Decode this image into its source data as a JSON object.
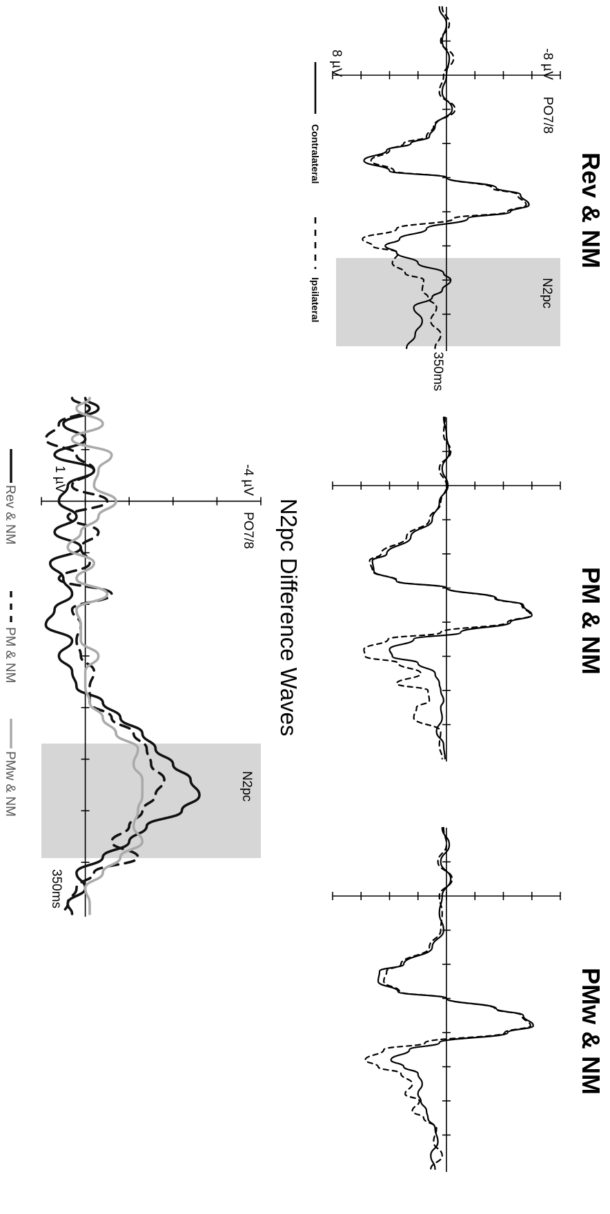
{
  "chart_data": [
    {
      "type": "line",
      "title": "Rev & NM",
      "electrode": "PO7/8",
      "y_top_label": "-8 µV",
      "y_bottom_label": "8 µV",
      "x_end_label": "350ms",
      "window_label": "N2pc",
      "ylim": [
        8,
        -8
      ],
      "xlim": [
        -100,
        400
      ],
      "shaded_window": [
        200,
        300
      ],
      "legend": {
        "contralateral": "Contralateral",
        "ipsilateral": "Ipsilateral"
      },
      "series": [
        {
          "name": "Contralateral",
          "style": "solid",
          "x": [
            -100,
            -75,
            -50,
            -25,
            0,
            25,
            50,
            75,
            90,
            100,
            110,
            125,
            140,
            150,
            165,
            175,
            190,
            200,
            210,
            225,
            240,
            250,
            260,
            275,
            290,
            300,
            315,
            325,
            340,
            360,
            380,
            400
          ],
          "y": [
            0.5,
            0,
            0.3,
            -0.2,
            0,
            0.3,
            -0.4,
            0.8,
            1.2,
            2.5,
            4.2,
            5.8,
            4.0,
            0,
            -3.5,
            -5.2,
            -5.8,
            -4.5,
            -1.5,
            1.4,
            3.3,
            4.3,
            3.5,
            2.0,
            0.2,
            -0.3,
            0.3,
            1.0,
            2.3,
            1.7,
            2.2,
            2.8
          ]
        },
        {
          "name": "Ipsilateral",
          "style": "dashed",
          "x": [
            -100,
            -75,
            -50,
            -25,
            0,
            25,
            50,
            75,
            90,
            100,
            110,
            125,
            140,
            150,
            165,
            175,
            190,
            200,
            210,
            225,
            240,
            250,
            260,
            275,
            290,
            300,
            315,
            325,
            340,
            360,
            380,
            400
          ],
          "y": [
            0.3,
            -0.2,
            0.4,
            -0.5,
            0.2,
            0.5,
            -0.6,
            0.9,
            1.4,
            3.0,
            4.0,
            5.3,
            3.7,
            0,
            -3.2,
            -5.0,
            -5.6,
            -4.3,
            -0.5,
            3.5,
            5.9,
            5.2,
            3.4,
            3.8,
            2.9,
            1.6,
            1.7,
            1.3,
            0.7,
            1.1,
            0.4,
            0.8
          ]
        }
      ]
    },
    {
      "type": "line",
      "title": "PM & NM",
      "ylim": [
        8,
        -8
      ],
      "xlim": [
        -100,
        400
      ],
      "series": [
        {
          "name": "Contralateral",
          "style": "solid",
          "x": [
            -100,
            -75,
            -50,
            -25,
            0,
            25,
            50,
            75,
            100,
            110,
            125,
            140,
            150,
            165,
            175,
            190,
            200,
            215,
            225,
            240,
            250,
            260,
            275,
            290,
            300,
            315,
            325,
            340,
            360,
            380,
            400
          ],
          "y": [
            0.2,
            0,
            -0.2,
            0.3,
            -0.1,
            0.5,
            1.0,
            2.5,
            4.2,
            5.2,
            5.1,
            3.5,
            0,
            -3.5,
            -5.4,
            -6.0,
            -4.5,
            -1.0,
            2.3,
            4.0,
            3.8,
            2.0,
            0.8,
            0.5,
            0.4,
            0.2,
            0.4,
            0.3,
            0.7,
            0.2,
            0.1
          ]
        },
        {
          "name": "Ipsilateral",
          "style": "dashed",
          "x": [
            -100,
            -75,
            -50,
            -25,
            0,
            25,
            50,
            75,
            100,
            110,
            125,
            140,
            150,
            165,
            175,
            190,
            200,
            215,
            225,
            240,
            250,
            260,
            275,
            290,
            300,
            315,
            325,
            340,
            360,
            380,
            400
          ],
          "y": [
            0.1,
            0.2,
            -0.3,
            0.5,
            0,
            0.4,
            1.2,
            2.8,
            4.6,
            5.4,
            5.2,
            3.4,
            0,
            -3.4,
            -5.3,
            -5.9,
            -4.3,
            0.4,
            4.1,
            5.8,
            5.7,
            3.4,
            1.8,
            3.5,
            1.3,
            1.2,
            2.1,
            2.3,
            0.4,
            0.5,
            0.3
          ]
        }
      ]
    },
    {
      "type": "line",
      "title": "PMw & NM",
      "ylim": [
        8,
        -8
      ],
      "xlim": [
        -100,
        400
      ],
      "series": [
        {
          "name": "Contralateral",
          "style": "solid",
          "x": [
            -100,
            -75,
            -50,
            -25,
            0,
            25,
            50,
            75,
            100,
            110,
            125,
            140,
            150,
            165,
            175,
            190,
            200,
            215,
            225,
            240,
            250,
            260,
            275,
            290,
            300,
            315,
            325,
            340,
            360,
            380,
            400
          ],
          "y": [
            0.3,
            -0.2,
            0.4,
            -0.3,
            0.3,
            0.5,
            0.2,
            1.0,
            3.0,
            4.7,
            4.8,
            3.4,
            0,
            -3.5,
            -5.4,
            -6.1,
            -4.3,
            0.5,
            2.6,
            3.9,
            3.0,
            2.0,
            1.7,
            2.0,
            1.8,
            1.4,
            1.3,
            0.8,
            0.6,
            1.1,
            0.8
          ]
        },
        {
          "name": "Ipsilateral",
          "style": "dashed",
          "x": [
            -100,
            -75,
            -50,
            -25,
            0,
            25,
            50,
            75,
            100,
            110,
            125,
            140,
            150,
            165,
            175,
            190,
            200,
            215,
            225,
            240,
            250,
            260,
            275,
            290,
            300,
            315,
            325,
            340,
            360,
            380,
            400
          ],
          "y": [
            0.2,
            0,
            0.6,
            -0.4,
            0.5,
            0.3,
            0.4,
            1.2,
            3.2,
            4.2,
            4.4,
            3.3,
            0,
            -3.4,
            -5.3,
            -5.9,
            -4.1,
            1.5,
            4.4,
            5.7,
            4.8,
            3.2,
            2.4,
            2.9,
            1.9,
            2.4,
            1.6,
            0.7,
            0.9,
            0.3,
            1.1
          ]
        }
      ]
    },
    {
      "type": "line",
      "title": "N2pc Difference Waves",
      "electrode": "PO7/8",
      "y_top_label": "-4 µV",
      "y_bottom_label": "1 µV",
      "x_end_label": "350ms",
      "window_label": "N2pc",
      "ylim": [
        1,
        -4
      ],
      "xlim": [
        -100,
        400
      ],
      "shaded_window": [
        200,
        300
      ],
      "legend_entries": [
        "Rev & NM",
        "PM & NM",
        "PMw & NM"
      ],
      "series": [
        {
          "name": "Rev & NM",
          "style": "solid",
          "color": "#111111",
          "x": [
            -100,
            -90,
            -75,
            -60,
            -45,
            -30,
            -15,
            0,
            15,
            30,
            45,
            60,
            75,
            90,
            105,
            120,
            135,
            150,
            165,
            180,
            195,
            210,
            225,
            240,
            255,
            270,
            285,
            300,
            315,
            330,
            345,
            360,
            375,
            390,
            400
          ],
          "y": [
            0.0,
            -0.3,
            0.5,
            0.0,
            0.7,
            -0.2,
            0.4,
            0.6,
            0.2,
            0.7,
            0.1,
            0.8,
            0.5,
            0.3,
            0.7,
            0.9,
            0.3,
            0.6,
            0.3,
            0.2,
            -0.4,
            -0.8,
            -1.3,
            -1.6,
            -2.0,
            -2.4,
            -2.6,
            -2.2,
            -1.4,
            -1.0,
            -0.4,
            0.2,
            0.0,
            0.4,
            0.3
          ]
        },
        {
          "name": "PM & NM",
          "style": "dashed",
          "color": "#111111",
          "x": [
            -100,
            -90,
            -75,
            -60,
            -45,
            -30,
            -15,
            0,
            15,
            30,
            45,
            60,
            75,
            90,
            105,
            120,
            135,
            150,
            165,
            180,
            195,
            210,
            225,
            240,
            255,
            270,
            285,
            300,
            315,
            330,
            345,
            360,
            375,
            390,
            400
          ],
          "y": [
            0.3,
            -0.1,
            0.6,
            0.9,
            0.2,
            -0.2,
            0.3,
            -0.5,
            0.4,
            -0.3,
            0.1,
            -0.1,
            0.6,
            -0.6,
            0.3,
            0.1,
            0.2,
            0.1,
            -0.2,
            -0.1,
            -0.1,
            -0.6,
            -1.1,
            -1.4,
            -1.5,
            -1.8,
            -1.6,
            -1.3,
            -1.0,
            -0.6,
            -1.2,
            -0.2,
            0.2,
            0.4,
            0.5
          ]
        },
        {
          "name": "PMw & NM",
          "style": "solid",
          "color": "#aaaaaa",
          "x": [
            -100,
            -90,
            -75,
            -60,
            -45,
            -30,
            -15,
            0,
            15,
            30,
            45,
            60,
            75,
            90,
            105,
            120,
            135,
            150,
            165,
            180,
            195,
            210,
            225,
            240,
            255,
            270,
            285,
            300,
            315,
            330,
            345,
            360,
            375,
            390,
            400
          ],
          "y": [
            -0.1,
            0.2,
            -0.4,
            0.3,
            -0.6,
            -0.3,
            -0.2,
            -0.7,
            -0.3,
            0.1,
            0.4,
            -0.2,
            0.2,
            -0.5,
            0.2,
            0.1,
            0.1,
            -0.3,
            0.0,
            0.0,
            -0.1,
            -0.4,
            -0.7,
            -1.2,
            -1.1,
            -1.3,
            -1.3,
            -1.2,
            -1.1,
            -1.3,
            -0.8,
            -0.4,
            0.0,
            -0.1,
            -0.1
          ]
        }
      ]
    }
  ]
}
